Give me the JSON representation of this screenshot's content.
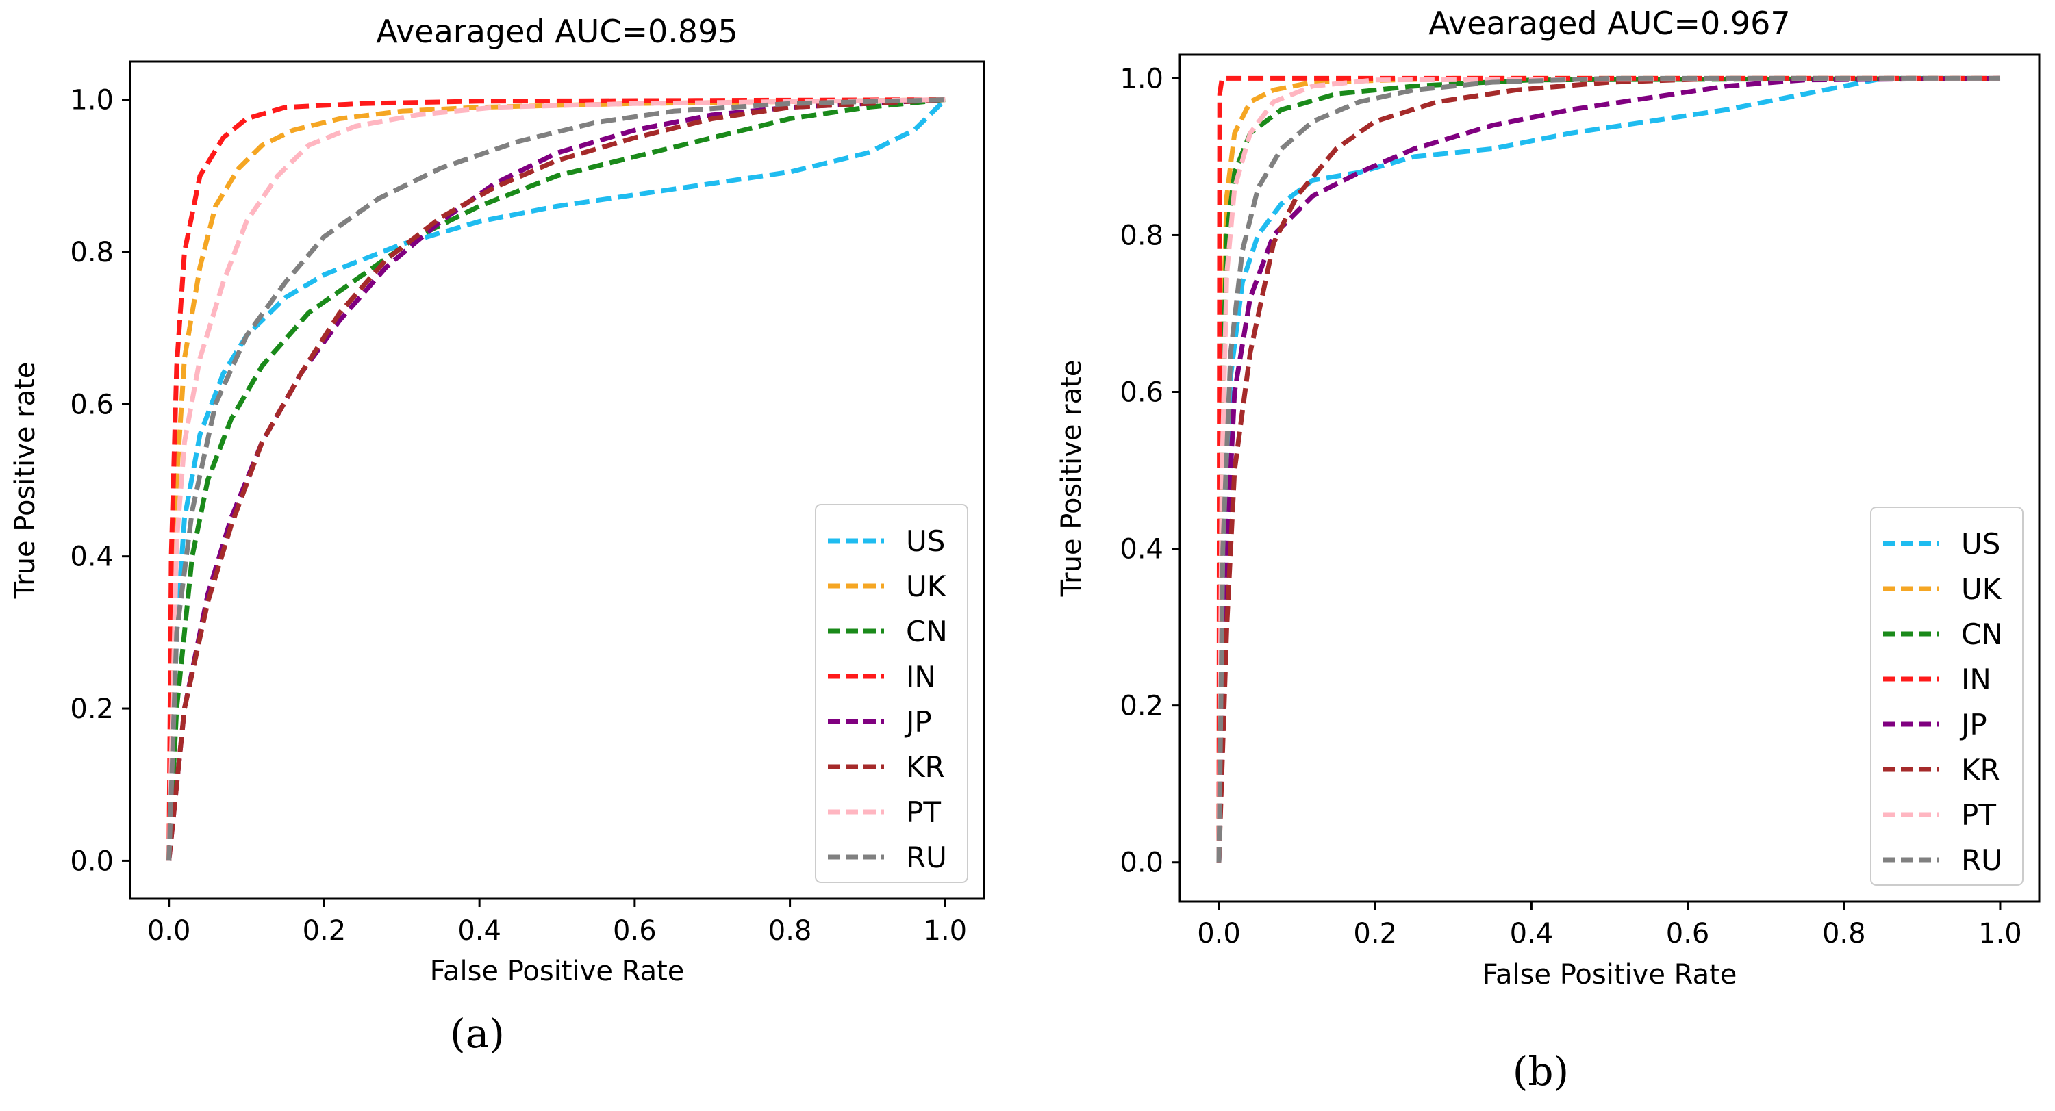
{
  "chart_data": [
    {
      "type": "line",
      "title": "Avearaged AUC=0.895",
      "xlabel": "False Positive Rate",
      "ylabel": "True Positive rate",
      "xlim": [
        -0.05,
        1.05
      ],
      "ylim": [
        -0.05,
        1.05
      ],
      "xticks": [
        "0.0",
        "0.2",
        "0.4",
        "0.6",
        "0.8",
        "1.0"
      ],
      "yticks": [
        "0.0",
        "0.2",
        "0.4",
        "0.6",
        "0.8",
        "1.0"
      ],
      "legend_position": "lower-right",
      "grid": false,
      "caption": "(a)",
      "series": [
        {
          "name": "US",
          "color": "#1fbcf0",
          "points": [
            [
              0,
              0
            ],
            [
              0.01,
              0.3
            ],
            [
              0.02,
              0.45
            ],
            [
              0.04,
              0.56
            ],
            [
              0.07,
              0.64
            ],
            [
              0.1,
              0.69
            ],
            [
              0.15,
              0.74
            ],
            [
              0.2,
              0.77
            ],
            [
              0.3,
              0.81
            ],
            [
              0.4,
              0.84
            ],
            [
              0.5,
              0.86
            ],
            [
              0.6,
              0.875
            ],
            [
              0.7,
              0.89
            ],
            [
              0.8,
              0.905
            ],
            [
              0.9,
              0.93
            ],
            [
              0.96,
              0.96
            ],
            [
              1.0,
              1.0
            ]
          ]
        },
        {
          "name": "UK",
          "color": "#f5a623",
          "points": [
            [
              0,
              0
            ],
            [
              0.01,
              0.5
            ],
            [
              0.02,
              0.66
            ],
            [
              0.04,
              0.78
            ],
            [
              0.06,
              0.86
            ],
            [
              0.09,
              0.91
            ],
            [
              0.12,
              0.94
            ],
            [
              0.16,
              0.96
            ],
            [
              0.22,
              0.975
            ],
            [
              0.3,
              0.985
            ],
            [
              0.4,
              0.99
            ],
            [
              0.6,
              0.995
            ],
            [
              1.0,
              1.0
            ]
          ]
        },
        {
          "name": "CN",
          "color": "#1a8a1a",
          "points": [
            [
              0,
              0
            ],
            [
              0.01,
              0.2
            ],
            [
              0.03,
              0.4
            ],
            [
              0.05,
              0.5
            ],
            [
              0.08,
              0.58
            ],
            [
              0.12,
              0.65
            ],
            [
              0.18,
              0.72
            ],
            [
              0.25,
              0.77
            ],
            [
              0.32,
              0.82
            ],
            [
              0.4,
              0.86
            ],
            [
              0.5,
              0.9
            ],
            [
              0.6,
              0.925
            ],
            [
              0.7,
              0.95
            ],
            [
              0.8,
              0.975
            ],
            [
              0.9,
              0.99
            ],
            [
              1.0,
              1.0
            ]
          ]
        },
        {
          "name": "IN",
          "color": "#ff1a1a",
          "points": [
            [
              0,
              0
            ],
            [
              0.003,
              0.4
            ],
            [
              0.01,
              0.65
            ],
            [
              0.02,
              0.8
            ],
            [
              0.04,
              0.9
            ],
            [
              0.07,
              0.95
            ],
            [
              0.1,
              0.975
            ],
            [
              0.15,
              0.99
            ],
            [
              0.25,
              0.995
            ],
            [
              0.4,
              0.998
            ],
            [
              1.0,
              1.0
            ]
          ]
        },
        {
          "name": "JP",
          "color": "#800080",
          "points": [
            [
              0,
              0
            ],
            [
              0.02,
              0.2
            ],
            [
              0.05,
              0.35
            ],
            [
              0.08,
              0.45
            ],
            [
              0.12,
              0.55
            ],
            [
              0.17,
              0.64
            ],
            [
              0.22,
              0.71
            ],
            [
              0.28,
              0.78
            ],
            [
              0.35,
              0.84
            ],
            [
              0.42,
              0.89
            ],
            [
              0.5,
              0.93
            ],
            [
              0.6,
              0.96
            ],
            [
              0.7,
              0.98
            ],
            [
              0.8,
              0.99
            ],
            [
              0.9,
              0.995
            ],
            [
              1.0,
              1.0
            ]
          ]
        },
        {
          "name": "KR",
          "color": "#a52a2a",
          "points": [
            [
              0,
              0
            ],
            [
              0.02,
              0.2
            ],
            [
              0.05,
              0.34
            ],
            [
              0.08,
              0.44
            ],
            [
              0.12,
              0.55
            ],
            [
              0.17,
              0.64
            ],
            [
              0.22,
              0.72
            ],
            [
              0.28,
              0.79
            ],
            [
              0.35,
              0.845
            ],
            [
              0.42,
              0.885
            ],
            [
              0.5,
              0.92
            ],
            [
              0.6,
              0.95
            ],
            [
              0.7,
              0.975
            ],
            [
              0.8,
              0.99
            ],
            [
              1.0,
              1.0
            ]
          ]
        },
        {
          "name": "PT",
          "color": "#ffb6c1",
          "points": [
            [
              0,
              0
            ],
            [
              0.01,
              0.42
            ],
            [
              0.02,
              0.55
            ],
            [
              0.04,
              0.66
            ],
            [
              0.07,
              0.76
            ],
            [
              0.1,
              0.84
            ],
            [
              0.14,
              0.9
            ],
            [
              0.18,
              0.94
            ],
            [
              0.24,
              0.965
            ],
            [
              0.32,
              0.98
            ],
            [
              0.42,
              0.99
            ],
            [
              0.6,
              0.995
            ],
            [
              1.0,
              1.0
            ]
          ]
        },
        {
          "name": "RU",
          "color": "#808080",
          "points": [
            [
              0,
              0
            ],
            [
              0.01,
              0.3
            ],
            [
              0.03,
              0.46
            ],
            [
              0.06,
              0.6
            ],
            [
              0.1,
              0.69
            ],
            [
              0.15,
              0.76
            ],
            [
              0.2,
              0.82
            ],
            [
              0.27,
              0.87
            ],
            [
              0.35,
              0.91
            ],
            [
              0.45,
              0.945
            ],
            [
              0.55,
              0.97
            ],
            [
              0.65,
              0.985
            ],
            [
              0.8,
              0.995
            ],
            [
              1.0,
              1.0
            ]
          ]
        }
      ]
    },
    {
      "type": "line",
      "title": "Avearaged AUC=0.967",
      "xlabel": "False Positive Rate",
      "ylabel": "True Positive rate",
      "xlim": [
        -0.05,
        1.05
      ],
      "ylim": [
        -0.05,
        1.03
      ],
      "xticks": [
        "0.0",
        "0.2",
        "0.4",
        "0.6",
        "0.8",
        "1.0"
      ],
      "yticks": [
        "0.0",
        "0.2",
        "0.4",
        "0.6",
        "0.8",
        "1.0"
      ],
      "legend_position": "lower-right",
      "grid": false,
      "caption": "(b)",
      "series": [
        {
          "name": "US",
          "color": "#1fbcf0",
          "points": [
            [
              0,
              0
            ],
            [
              0.005,
              0.4
            ],
            [
              0.015,
              0.62
            ],
            [
              0.03,
              0.74
            ],
            [
              0.05,
              0.8
            ],
            [
              0.08,
              0.84
            ],
            [
              0.12,
              0.87
            ],
            [
              0.18,
              0.88
            ],
            [
              0.25,
              0.9
            ],
            [
              0.35,
              0.91
            ],
            [
              0.45,
              0.93
            ],
            [
              0.55,
              0.945
            ],
            [
              0.65,
              0.96
            ],
            [
              0.75,
              0.98
            ],
            [
              0.85,
              1.0
            ],
            [
              1.0,
              1.0
            ]
          ]
        },
        {
          "name": "UK",
          "color": "#f5a623",
          "points": [
            [
              0,
              0
            ],
            [
              0.003,
              0.6
            ],
            [
              0.01,
              0.85
            ],
            [
              0.02,
              0.93
            ],
            [
              0.04,
              0.97
            ],
            [
              0.07,
              0.985
            ],
            [
              0.12,
              0.995
            ],
            [
              0.3,
              1.0
            ],
            [
              1.0,
              1.0
            ]
          ]
        },
        {
          "name": "CN",
          "color": "#1a8a1a",
          "points": [
            [
              0,
              0
            ],
            [
              0.003,
              0.55
            ],
            [
              0.01,
              0.8
            ],
            [
              0.02,
              0.88
            ],
            [
              0.04,
              0.93
            ],
            [
              0.08,
              0.96
            ],
            [
              0.15,
              0.98
            ],
            [
              0.25,
              0.99
            ],
            [
              0.4,
              0.998
            ],
            [
              1.0,
              1.0
            ]
          ]
        },
        {
          "name": "IN",
          "color": "#ff1a1a",
          "points": [
            [
              0,
              0
            ],
            [
              0.001,
              0.98
            ],
            [
              0.004,
              1.0
            ],
            [
              1.0,
              1.0
            ]
          ]
        },
        {
          "name": "JP",
          "color": "#800080",
          "points": [
            [
              0,
              0
            ],
            [
              0.01,
              0.4
            ],
            [
              0.02,
              0.6
            ],
            [
              0.04,
              0.72
            ],
            [
              0.07,
              0.8
            ],
            [
              0.12,
              0.85
            ],
            [
              0.18,
              0.88
            ],
            [
              0.25,
              0.91
            ],
            [
              0.35,
              0.94
            ],
            [
              0.45,
              0.96
            ],
            [
              0.55,
              0.975
            ],
            [
              0.65,
              0.99
            ],
            [
              0.75,
              0.998
            ],
            [
              1.0,
              1.0
            ]
          ]
        },
        {
          "name": "KR",
          "color": "#a52a2a",
          "points": [
            [
              0,
              0
            ],
            [
              0.01,
              0.3
            ],
            [
              0.02,
              0.5
            ],
            [
              0.04,
              0.65
            ],
            [
              0.07,
              0.79
            ],
            [
              0.1,
              0.85
            ],
            [
              0.15,
              0.91
            ],
            [
              0.2,
              0.945
            ],
            [
              0.28,
              0.97
            ],
            [
              0.38,
              0.985
            ],
            [
              0.5,
              0.995
            ],
            [
              0.65,
              1.0
            ],
            [
              1.0,
              1.0
            ]
          ]
        },
        {
          "name": "PT",
          "color": "#ffb6c1",
          "points": [
            [
              0,
              0
            ],
            [
              0.004,
              0.5
            ],
            [
              0.01,
              0.75
            ],
            [
              0.02,
              0.86
            ],
            [
              0.04,
              0.93
            ],
            [
              0.07,
              0.97
            ],
            [
              0.12,
              0.99
            ],
            [
              0.2,
              0.998
            ],
            [
              1.0,
              1.0
            ]
          ]
        },
        {
          "name": "RU",
          "color": "#808080",
          "points": [
            [
              0,
              0
            ],
            [
              0.005,
              0.4
            ],
            [
              0.015,
              0.65
            ],
            [
              0.03,
              0.78
            ],
            [
              0.05,
              0.86
            ],
            [
              0.08,
              0.91
            ],
            [
              0.12,
              0.945
            ],
            [
              0.18,
              0.97
            ],
            [
              0.25,
              0.985
            ],
            [
              0.35,
              0.995
            ],
            [
              0.5,
              1.0
            ],
            [
              1.0,
              1.0
            ]
          ]
        }
      ]
    }
  ]
}
